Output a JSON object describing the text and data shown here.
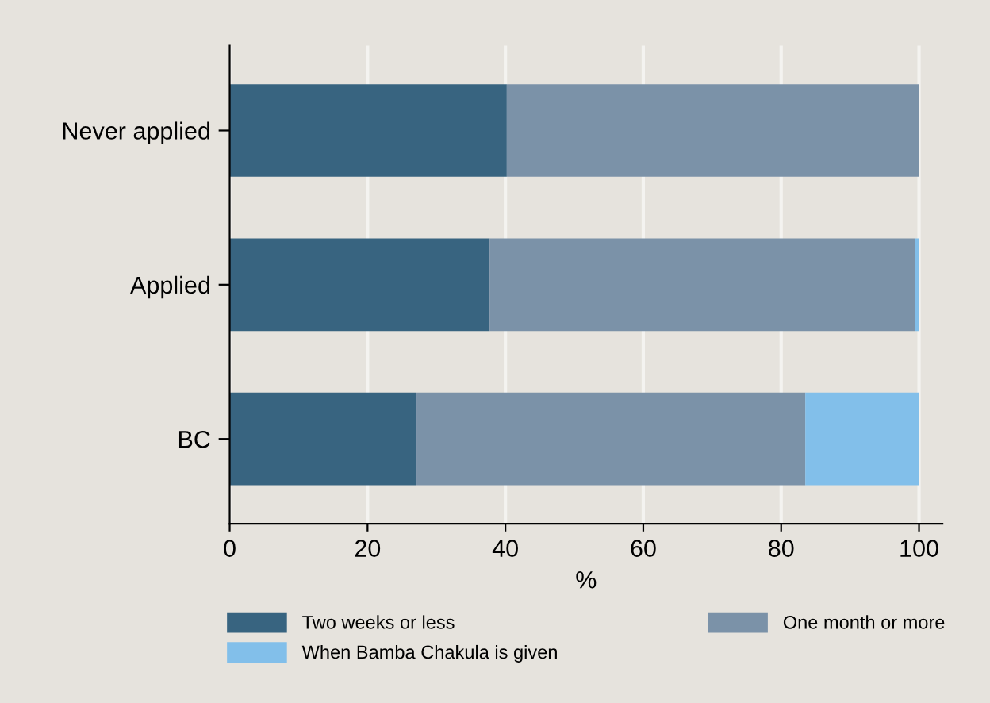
{
  "chart_data": {
    "type": "bar",
    "orientation": "horizontal",
    "stacked": true,
    "xlabel": "%",
    "categories": [
      "Never applied",
      "Applied",
      "BC"
    ],
    "series": [
      {
        "name": "Two weeks or less",
        "color": "#386480",
        "values": [
          40.2,
          37.7,
          27.1
        ]
      },
      {
        "name": "One month or more",
        "color": "#7b92a8",
        "values": [
          59.8,
          61.7,
          56.4
        ]
      },
      {
        "name": "When Bamba Chakula is given",
        "color": "#82bfea",
        "values": [
          0,
          0.6,
          16.5
        ]
      }
    ],
    "xlim": [
      0,
      103.4
    ],
    "xticks": [
      0,
      20,
      40,
      60,
      80,
      100
    ],
    "grid": "x",
    "legend": "bottom"
  }
}
